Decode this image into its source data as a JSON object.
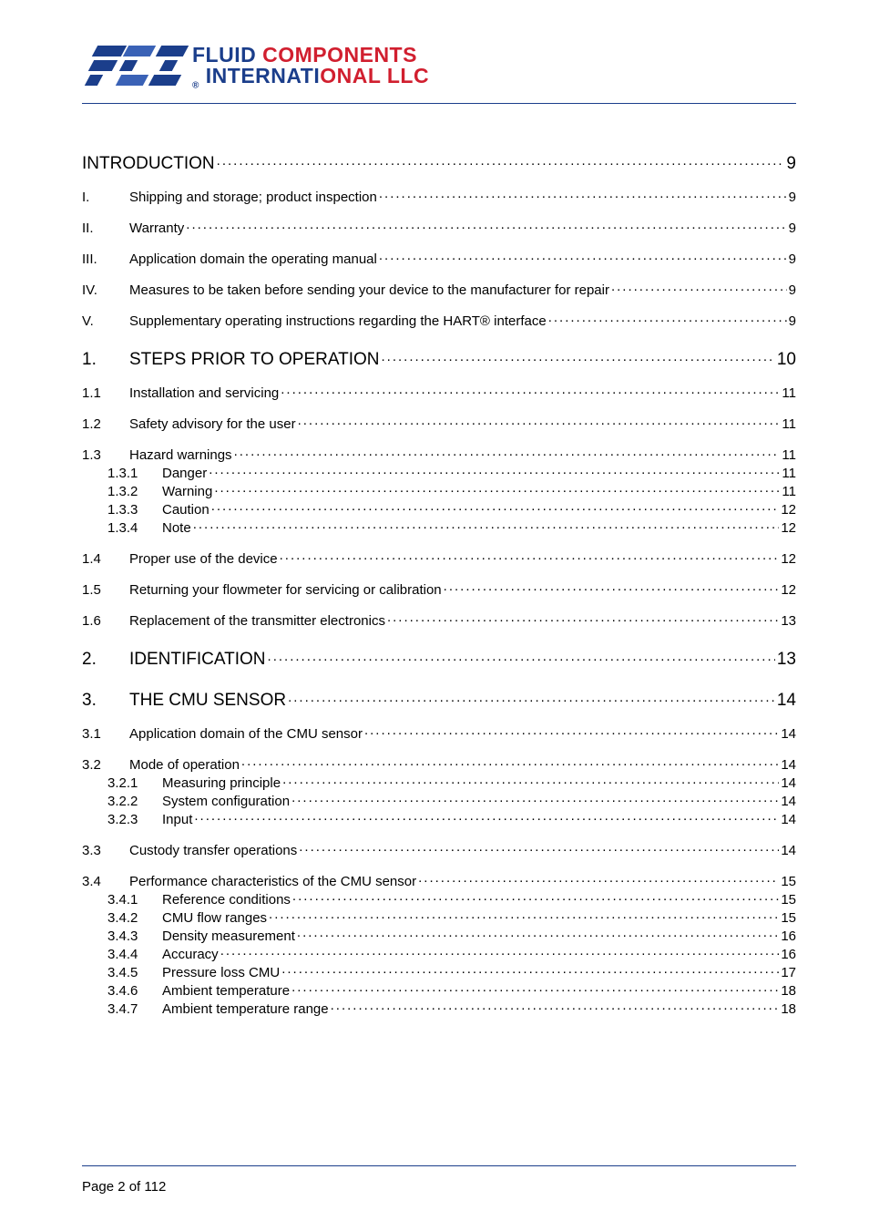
{
  "brand": {
    "accent_color": "#1b3e8b",
    "rule_color": "#1b3e8b",
    "bar_light": "#3a62b6",
    "line1_prefix": "FLUID ",
    "line1_suffix": "COMPONENTS",
    "line2_prefix": "INTERNATI",
    "line2_suffix": "ONAL LLC",
    "registered": "®"
  },
  "toc": [
    {
      "type": "heading",
      "num": "",
      "title": "INTRODUCTION",
      "page": "9"
    },
    {
      "type": "gap",
      "size": "m"
    },
    {
      "type": "lvl1",
      "num": "I.",
      "title": "Shipping and storage; product inspection",
      "page": "9"
    },
    {
      "type": "gap",
      "size": "m"
    },
    {
      "type": "lvl1",
      "num": "II.",
      "title": "Warranty",
      "page": "9"
    },
    {
      "type": "gap",
      "size": "m"
    },
    {
      "type": "lvl1",
      "num": "III.",
      "title": "Application domain the operating manual",
      "page": "9"
    },
    {
      "type": "gap",
      "size": "m"
    },
    {
      "type": "lvl1",
      "num": "IV.",
      "title": "Measures to be taken before sending your device to the manufacturer for repair",
      "page": "9"
    },
    {
      "type": "gap",
      "size": "m"
    },
    {
      "type": "lvl1",
      "num": "V.",
      "title": "Supplementary operating instructions regarding the HART® interface",
      "page": "9"
    },
    {
      "type": "gap",
      "size": "l"
    },
    {
      "type": "heading",
      "num": "1.",
      "title": "STEPS PRIOR TO OPERATION",
      "page": "10"
    },
    {
      "type": "gap",
      "size": "m"
    },
    {
      "type": "lvl1",
      "num": "1.1",
      "title": "Installation and servicing",
      "page": "11"
    },
    {
      "type": "gap",
      "size": "m"
    },
    {
      "type": "lvl1",
      "num": "1.2",
      "title": "Safety advisory for the user",
      "page": "11"
    },
    {
      "type": "gap",
      "size": "m"
    },
    {
      "type": "lvl1",
      "num": "1.3",
      "title": "Hazard warnings",
      "page": "11"
    },
    {
      "type": "lvl2",
      "num": "1.3.1",
      "title": "Danger",
      "page": "11"
    },
    {
      "type": "lvl2",
      "num": "1.3.2",
      "title": "Warning",
      "page": "11"
    },
    {
      "type": "lvl2",
      "num": "1.3.3",
      "title": "Caution",
      "page": "12"
    },
    {
      "type": "lvl2",
      "num": "1.3.4",
      "title": "Note",
      "page": "12"
    },
    {
      "type": "gap",
      "size": "m"
    },
    {
      "type": "lvl1",
      "num": "1.4",
      "title": "Proper use of the device",
      "page": "12"
    },
    {
      "type": "gap",
      "size": "m"
    },
    {
      "type": "lvl1",
      "num": "1.5",
      "title": "Returning your flowmeter for servicing or calibration",
      "page": "12"
    },
    {
      "type": "gap",
      "size": "m"
    },
    {
      "type": "lvl1",
      "num": "1.6",
      "title": "Replacement of the transmitter electronics",
      "page": "13"
    },
    {
      "type": "gap",
      "size": "l"
    },
    {
      "type": "heading",
      "num": "2.",
      "title": "IDENTIFICATION",
      "page": "13"
    },
    {
      "type": "gap",
      "size": "l"
    },
    {
      "type": "heading",
      "num": "3.",
      "title": "THE CMU SENSOR",
      "page": "14"
    },
    {
      "type": "gap",
      "size": "m"
    },
    {
      "type": "lvl1",
      "num": "3.1",
      "title": "Application domain of the CMU sensor",
      "page": "14"
    },
    {
      "type": "gap",
      "size": "m"
    },
    {
      "type": "lvl1",
      "num": "3.2",
      "title": "Mode of operation",
      "page": "14"
    },
    {
      "type": "lvl2",
      "num": "3.2.1",
      "title": "Measuring principle",
      "page": "14"
    },
    {
      "type": "lvl2",
      "num": "3.2.2",
      "title": "System configuration",
      "page": "14"
    },
    {
      "type": "lvl2",
      "num": "3.2.3",
      "title": "Input",
      "page": "14"
    },
    {
      "type": "gap",
      "size": "m"
    },
    {
      "type": "lvl1",
      "num": "3.3",
      "title": "Custody transfer operations",
      "page": "14"
    },
    {
      "type": "gap",
      "size": "m"
    },
    {
      "type": "lvl1",
      "num": "3.4",
      "title": "Performance characteristics of the CMU sensor",
      "page": "15"
    },
    {
      "type": "lvl2",
      "num": "3.4.1",
      "title": "Reference conditions",
      "page": "15"
    },
    {
      "type": "lvl2",
      "num": "3.4.2",
      "title": "CMU flow ranges",
      "page": "15"
    },
    {
      "type": "lvl2",
      "num": "3.4.3",
      "title": "Density measurement",
      "page": "16"
    },
    {
      "type": "lvl2",
      "num": "3.4.4",
      "title": "Accuracy",
      "page": "16"
    },
    {
      "type": "lvl2",
      "num": "3.4.5",
      "title": "Pressure loss CMU",
      "page": "17"
    },
    {
      "type": "lvl2",
      "num": "3.4.6",
      "title": "Ambient temperature",
      "page": "18"
    },
    {
      "type": "lvl2",
      "num": "3.4.7",
      "title": "Ambient temperature range",
      "page": "18"
    }
  ],
  "footer": {
    "text": "Page 2 of 112",
    "rule_color": "#1b3e8b"
  }
}
